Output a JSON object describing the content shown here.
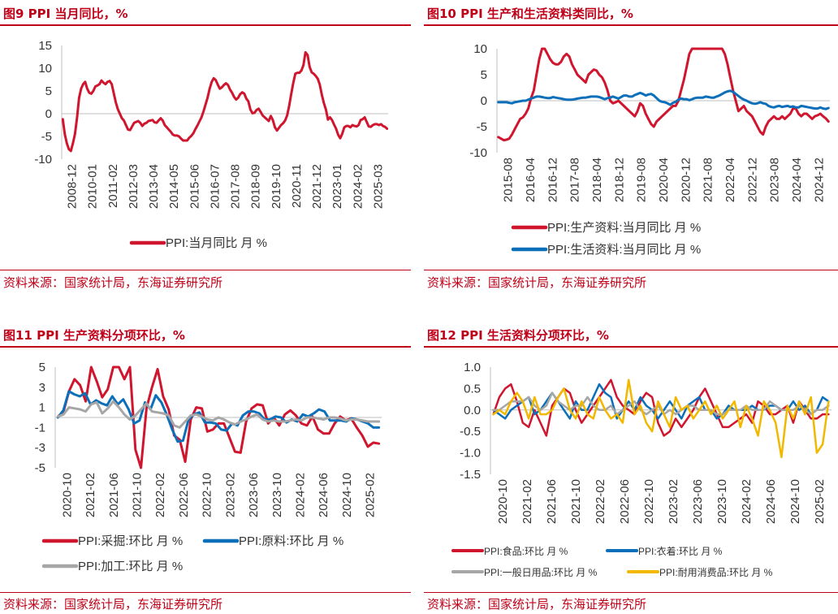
{
  "chart_data": [
    {
      "type": "line",
      "title": "图9  PPI 当月同比，%",
      "source": "资料来源：国家统计局，东海证券研究所",
      "ylim": [
        -10,
        15
      ],
      "yticks": [
        "15",
        "10",
        "5",
        "0",
        "-5",
        "-10"
      ],
      "xticks": [
        "2008-12",
        "2010-01",
        "2011-02",
        "2012-03",
        "2013-04",
        "2014-05",
        "2015-06",
        "2016-07",
        "2017-08",
        "2018-09",
        "2019-10",
        "2020-11",
        "2021-12",
        "2023-01",
        "2024-02",
        "2025-03"
      ],
      "series": [
        {
          "name": "PPI:当月同比 月 %",
          "color": "#d0152e",
          "values": [
            -1.2,
            -4.5,
            -6.5,
            -7.8,
            -8.2,
            -6.5,
            -4.5,
            -1.0,
            3.5,
            5.5,
            6.5,
            7.0,
            5.5,
            4.6,
            4.4,
            5.0,
            6.0,
            6.2,
            6.5,
            7.3,
            6.8,
            6.5,
            7.0,
            7.2,
            6.5,
            4.5,
            2.5,
            1.0,
            0.0,
            -1.0,
            -1.5,
            -2.5,
            -3.5,
            -3.6,
            -2.8,
            -2.0,
            -1.8,
            -1.6,
            -2.0,
            -2.7,
            -2.2,
            -2.0,
            -1.6,
            -1.5,
            -1.4,
            -1.9,
            -2.0,
            -1.5,
            -1.0,
            -1.5,
            -2.5,
            -3.0,
            -3.5,
            -4.0,
            -4.6,
            -4.8,
            -4.8,
            -5.0,
            -5.5,
            -5.9,
            -5.9,
            -5.9,
            -5.3,
            -4.9,
            -4.3,
            -3.4,
            -2.6,
            -1.7,
            -0.8,
            0.5,
            2.0,
            3.5,
            5.5,
            7.0,
            7.8,
            7.4,
            6.4,
            5.5,
            5.8,
            6.3,
            6.7,
            6.3,
            5.3,
            4.6,
            3.7,
            3.1,
            3.5,
            4.3,
            4.7,
            4.4,
            3.3,
            2.7,
            0.9,
            0.1,
            0.2,
            0.8,
            1.1,
            0.4,
            -0.4,
            -0.8,
            -1.2,
            -1.6,
            -0.5,
            -1.4,
            -3.0,
            -3.7,
            -3.1,
            -2.5,
            -2.1,
            -1.5,
            -0.4,
            1.7,
            4.4,
            6.8,
            8.8,
            9.0,
            9.0,
            9.5,
            10.7,
            13.5,
            12.9,
            10.3,
            9.1,
            8.8,
            8.3,
            7.7,
            6.4,
            4.2,
            2.3,
            0.9,
            -1.3,
            -0.8,
            -1.4,
            -2.4,
            -3.3,
            -4.6,
            -5.4,
            -4.4,
            -3.0,
            -2.7,
            -2.7,
            -3.0,
            -2.5,
            -2.7,
            -2.8,
            -2.5,
            -1.4,
            -1.2,
            -0.8,
            -1.8,
            -2.8,
            -2.9,
            -2.5,
            -2.3,
            -2.3,
            -2.5,
            -2.3,
            -2.7,
            -2.9,
            -3.3
          ]
        }
      ]
    },
    {
      "type": "line",
      "title": "图10  PPI 生产和生活资料类同比，%",
      "source": "资料来源：国家统计局，东海证券研究所",
      "ylim": [
        -10,
        10
      ],
      "yticks": [
        "10",
        "5",
        "0",
        "-5",
        "-10"
      ],
      "xticks": [
        "2015-08",
        "2016-04",
        "2016-12",
        "2017-08",
        "2018-04",
        "2018-12",
        "2019-08",
        "2020-04",
        "2020-12",
        "2021-08",
        "2022-04",
        "2022-12",
        "2023-08",
        "2024-04",
        "2024-12"
      ],
      "series": [
        {
          "name": "PPI:生产资料:当月同比 月 %",
          "color": "#d0152e",
          "values": [
            -7.0,
            -7.3,
            -7.6,
            -7.5,
            -7.3,
            -6.5,
            -5.5,
            -4.5,
            -3.5,
            -3.2,
            -2.5,
            -1.5,
            0.5,
            2.0,
            5.0,
            8.0,
            10.0,
            10.0,
            9.0,
            8.0,
            7.3,
            7.0,
            7.0,
            7.5,
            8.5,
            9.0,
            8.5,
            7.0,
            6.0,
            5.0,
            4.5,
            4.0,
            3.5,
            5.0,
            5.5,
            6.0,
            5.8,
            5.0,
            4.5,
            3.5,
            2.0,
            0.0,
            -0.5,
            -0.3,
            0.0,
            -0.5,
            -1.0,
            -1.5,
            -2.0,
            -2.5,
            -3.0,
            -2.0,
            -0.5,
            -1.0,
            -2.5,
            -3.5,
            -4.5,
            -5.0,
            -4.0,
            -3.5,
            -3.0,
            -2.5,
            -2.0,
            -1.5,
            -1.0,
            -1.0,
            0.0,
            2.0,
            4.0,
            6.5,
            9.0,
            10.0,
            10.0,
            10.0,
            10.0,
            10.0,
            10.0,
            10.0,
            10.0,
            10.0,
            10.0,
            10.0,
            10.0,
            9.0,
            7.0,
            4.5,
            2.0,
            0.0,
            -2.0,
            -1.5,
            -1.0,
            -2.0,
            -2.5,
            -3.0,
            -4.0,
            -5.0,
            -6.0,
            -6.5,
            -5.0,
            -4.0,
            -3.5,
            -3.0,
            -3.5,
            -3.5,
            -3.0,
            -3.5,
            -3.0,
            -2.5,
            -1.5,
            -1.5,
            -2.5,
            -3.0,
            -2.5,
            -2.5,
            -3.0,
            -3.5,
            -3.0,
            -2.8,
            -2.5,
            -3.0,
            -3.4,
            -4.0
          ]
        },
        {
          "name": "PPI:生活资料:当月同比 月 %",
          "color": "#0b6fba",
          "values": [
            -0.3,
            -0.3,
            -0.3,
            -0.3,
            -0.4,
            -0.5,
            -0.3,
            -0.2,
            -0.1,
            0.0,
            0.0,
            0.2,
            0.4,
            0.6,
            0.8,
            0.8,
            0.7,
            0.6,
            0.5,
            0.5,
            0.7,
            0.6,
            0.5,
            0.4,
            0.3,
            0.2,
            0.2,
            0.2,
            0.3,
            0.4,
            0.5,
            0.6,
            0.6,
            0.7,
            0.8,
            0.8,
            0.8,
            0.7,
            0.5,
            0.3,
            0.5,
            0.6,
            0.8,
            0.6,
            0.4,
            0.7,
            1.0,
            1.0,
            0.8,
            0.8,
            1.1,
            1.3,
            1.5,
            1.3,
            1.0,
            1.2,
            1.3,
            1.0,
            0.5,
            0.0,
            -0.2,
            -0.3,
            -0.5,
            -0.8,
            -0.4,
            -0.2,
            0.2,
            0.4,
            0.3,
            0.3,
            0.1,
            0.3,
            0.5,
            0.6,
            0.6,
            0.6,
            0.8,
            0.7,
            0.6,
            0.6,
            0.8,
            1.0,
            1.3,
            1.6,
            1.8,
            1.9,
            1.7,
            1.3,
            0.9,
            0.5,
            0.2,
            0.0,
            -0.3,
            -0.5,
            -0.6,
            -0.5,
            -0.3,
            -0.5,
            -0.6,
            -1.0,
            -1.2,
            -1.3,
            -1.1,
            -1.0,
            -1.2,
            -1.1,
            -1.0,
            -1.2,
            -1.1,
            -1.3,
            -1.3,
            -1.0,
            -1.1,
            -1.2,
            -1.3,
            -1.4,
            -1.5,
            -1.5,
            -1.3,
            -1.5,
            -1.6,
            -1.4
          ]
        }
      ]
    },
    {
      "type": "line",
      "title": "图11  PPI 生产资料分项环比，%",
      "source": "资料来源：国家统计局，东海证券研究所",
      "ylim": [
        -5,
        5
      ],
      "yticks": [
        "5",
        "3",
        "1",
        "-1",
        "-3",
        "-5"
      ],
      "xticks": [
        "2020-10",
        "2021-02",
        "2021-06",
        "2021-10",
        "2022-02",
        "2022-06",
        "2022-10",
        "2023-02",
        "2023-06",
        "2023-10",
        "2024-02",
        "2024-06",
        "2024-10",
        "2025-02"
      ],
      "series": [
        {
          "name": "PPI:采掘:环比 月 %",
          "color": "#d0152e",
          "values": [
            0.1,
            0.6,
            2.6,
            3.8,
            3.2,
            1.6,
            5.0,
            3.6,
            2.0,
            2.8,
            5.0,
            5.0,
            3.8,
            5.0,
            -3.2,
            -5.0,
            0.9,
            3.0,
            4.8,
            2.1,
            0.8,
            -1.8,
            -2.2,
            -4.4,
            -0.2,
            1.0,
            0.9,
            -1.4,
            -1.2,
            -0.6,
            -0.6,
            -2.0,
            -3.4,
            -3.5,
            -0.4,
            0.9,
            1.3,
            1.2,
            -0.6,
            0.0,
            -0.8,
            0.3,
            0.7,
            0.2,
            -0.6,
            -0.8,
            0.1,
            -1.2,
            -1.6,
            -1.6,
            -0.6,
            0.1,
            -0.3,
            -0.1,
            -1.0,
            -1.8,
            -2.9,
            -2.5,
            -2.6
          ]
        },
        {
          "name": "PPI:原料:环比 月 %",
          "color": "#0b6fba",
          "values": [
            0.0,
            0.7,
            2.6,
            2.3,
            2.1,
            2.4,
            1.3,
            1.7,
            1.4,
            1.2,
            2.1,
            1.3,
            1.8,
            0.8,
            -0.6,
            -0.3,
            1.5,
            0.8,
            2.2,
            1.5,
            0.3,
            -1.2,
            -2.4,
            -2.3,
            -0.2,
            0.3,
            0.5,
            -0.5,
            -0.5,
            -0.6,
            -1.2,
            -1.3,
            -0.6,
            -0.8,
            0.2,
            0.6,
            0.6,
            0.4,
            -0.2,
            -0.2,
            0.1,
            0.0,
            -0.5,
            -0.2,
            -0.4,
            0.3,
            0.1,
            0.4,
            0.8,
            0.6,
            -0.3,
            -0.3,
            -0.3,
            -0.4,
            -0.1,
            -0.2,
            -0.4,
            -0.6,
            -1.0,
            -1.0
          ]
        },
        {
          "name": "PPI:加工:环比 月 %",
          "color": "#a6a6a6",
          "values": [
            0.1,
            0.3,
            1.0,
            0.9,
            0.8,
            0.6,
            1.3,
            1.5,
            0.4,
            0.9,
            1.6,
            1.0,
            0.3,
            -0.2,
            0.2,
            0.8,
            1.4,
            0.6,
            0.5,
            0.4,
            0.2,
            -0.8,
            -1.0,
            -0.4,
            0.2,
            0.3,
            0.1,
            -0.2,
            -0.3,
            0.0,
            -0.2,
            -0.5,
            -0.7,
            -0.4,
            -0.2,
            0.1,
            0.3,
            -0.2,
            -0.4,
            -0.3,
            -0.4,
            -0.4,
            -0.3,
            -0.2,
            -0.3,
            0.0,
            0.0,
            -0.1,
            -0.2,
            0.0,
            0.0,
            -0.1,
            -0.3,
            -0.2,
            -0.2,
            -0.3,
            -0.4,
            -0.4,
            -0.4
          ]
        }
      ]
    },
    {
      "type": "line",
      "title": "图12  PPI 生活资料分项环比，%",
      "source": "资料来源：国家统计局，东海证券研究所",
      "ylim": [
        -1.5,
        1.0
      ],
      "yticks": [
        "1.0",
        "0.5",
        "0.0",
        "-0.5",
        "-1.0",
        "-1.5"
      ],
      "xticks": [
        "2020-10",
        "2021-02",
        "2021-06",
        "2021-10",
        "2022-02",
        "2022-06",
        "2022-10",
        "2023-02",
        "2023-06",
        "2023-10",
        "2024-02",
        "2024-06",
        "2024-10",
        "2025-02"
      ],
      "series": [
        {
          "name": "PPI:食品:环比 月 %",
          "color": "#d0152e",
          "values": [
            -0.1,
            0.3,
            0.5,
            0.6,
            0.2,
            -0.3,
            -0.4,
            0.0,
            -0.3,
            -0.6,
            0.1,
            0.3,
            0.5,
            0.4,
            0.0,
            -0.3,
            -0.1,
            0.1,
            0.3,
            0.5,
            0.7,
            0.3,
            0.1,
            0.0,
            -0.1,
            0.2,
            0.4,
            0.3,
            -0.3,
            -0.6,
            -0.5,
            -0.2,
            -0.4,
            -0.2,
            0.0,
            0.3,
            0.5,
            0.2,
            -0.1,
            -0.4,
            -0.4,
            -0.3,
            -0.2,
            -0.1,
            -0.3,
            0.2,
            0.1,
            -0.1,
            -0.1,
            0.0,
            0.1,
            -0.3,
            0.2,
            0.0,
            -0.2,
            -0.2,
            -0.1,
            -0.1
          ]
        },
        {
          "name": "PPI:衣着:环比 月 %",
          "color": "#0b6fba",
          "values": [
            0.0,
            -0.1,
            -0.2,
            0.0,
            0.1,
            0.2,
            0.3,
            -0.1,
            0.0,
            0.2,
            0.4,
            0.2,
            0.0,
            -0.2,
            0.2,
            0.0,
            0.0,
            0.3,
            0.6,
            0.4,
            0.3,
            -0.2,
            0.0,
            0.2,
            0.0,
            0.3,
            0.1,
            0.0,
            -0.2,
            0.0,
            0.2,
            0.0,
            -0.2,
            0.1,
            0.2,
            0.3,
            0.0,
            0.0,
            -0.2,
            -0.1,
            0.1,
            0.0,
            0.0,
            0.0,
            0.1,
            0.0,
            0.0,
            0.1,
            0.1,
            0.0,
            0.0,
            0.2,
            0.0,
            0.1,
            -0.1,
            0.0,
            0.3,
            0.2
          ]
        },
        {
          "name": "PPI:一般日用品:环比 月 %",
          "color": "#a6a6a6",
          "values": [
            0.0,
            0.0,
            0.1,
            0.2,
            0.2,
            0.2,
            0.3,
            0.1,
            0.0,
            0.1,
            0.4,
            0.2,
            0.1,
            0.0,
            0.1,
            0.1,
            0.3,
            0.1,
            0.0,
            0.0,
            0.1,
            -0.1,
            0.0,
            0.1,
            0.2,
            0.0,
            -0.1,
            0.0,
            0.1,
            -0.1,
            0.0,
            -0.1,
            0.0,
            0.1,
            0.1,
            0.0,
            0.0,
            0.0,
            -0.1,
            -0.1,
            0.0,
            0.0,
            0.0,
            0.1,
            0.0,
            0.0,
            0.0,
            0.2,
            0.1,
            0.0,
            0.0,
            0.0,
            0.1,
            0.0,
            -0.1,
            0.0,
            0.0,
            0.1
          ]
        },
        {
          "name": "PPI:耐用消费品:环比 月 %",
          "color": "#f2b800",
          "values": [
            -0.1,
            0.0,
            -0.1,
            0.2,
            0.4,
            0.2,
            -0.2,
            0.3,
            -0.1,
            -0.1,
            0.0,
            0.3,
            0.5,
            0.0,
            -0.2,
            0.2,
            -0.1,
            -0.2,
            0.3,
            0.0,
            -0.2,
            -0.1,
            -0.3,
            0.7,
            -0.1,
            0.1,
            -0.3,
            -0.5,
            0.2,
            -0.1,
            -0.4,
            0.3,
            0.0,
            0.1,
            -0.2,
            0.0,
            0.2,
            -0.1,
            0.1,
            -0.2,
            0.0,
            0.2,
            -0.4,
            0.1,
            -0.2,
            -0.6,
            0.2,
            0.0,
            -0.3,
            -1.1,
            0.1,
            -0.2,
            0.2,
            -0.1,
            0.3,
            -1.0,
            -0.8,
            0.2
          ]
        }
      ]
    }
  ]
}
